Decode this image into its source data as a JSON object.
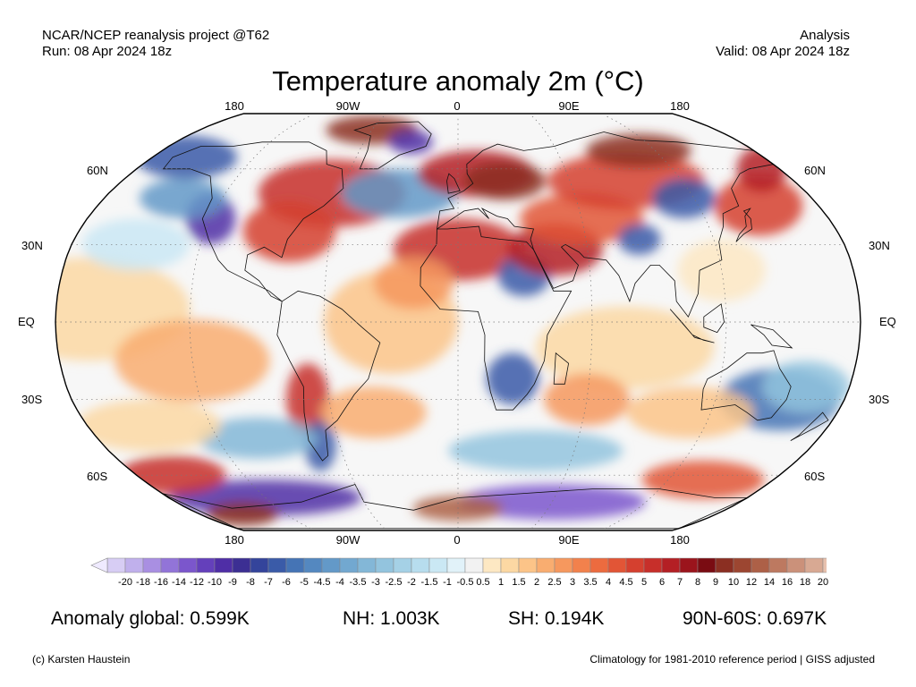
{
  "header": {
    "project": "NCAR/NCEP reanalysis project @T62",
    "run": "Run: 08 Apr 2024 18z",
    "kind": "Analysis",
    "valid": "Valid: 08 Apr 2024 18z"
  },
  "title": "Temperature anomaly 2m (°C)",
  "map": {
    "projection": "robinson",
    "lon_labels": [
      "180",
      "90W",
      "0",
      "90E",
      "180"
    ],
    "lat_labels": [
      "60N",
      "30N",
      "EQ",
      "30S",
      "60S"
    ]
  },
  "colorbar": {
    "labels": [
      "-20",
      "-18",
      "-16",
      "-14",
      "-12",
      "-10",
      "-9",
      "-8",
      "-7",
      "-6",
      "-5",
      "-4.5",
      "-4",
      "-3.5",
      "-3",
      "-2.5",
      "-2",
      "-1.5",
      "-1",
      "-0.5",
      "0.5",
      "1",
      "1.5",
      "2",
      "2.5",
      "3",
      "3.5",
      "4",
      "4.5",
      "5",
      "6",
      "7",
      "8",
      "9",
      "10",
      "12",
      "14",
      "16",
      "18",
      "20"
    ],
    "colors": [
      "#d7cdf4",
      "#c0b0ec",
      "#a98fe2",
      "#9274d8",
      "#7b56cc",
      "#6440bb",
      "#4f2ea6",
      "#3c2f93",
      "#34449b",
      "#3a5ba8",
      "#4574b5",
      "#5488c0",
      "#6399c8",
      "#72a8d0",
      "#83b7d7",
      "#93c4de",
      "#a5d1e6",
      "#b7ddee",
      "#cae8f4",
      "#e1f2f9",
      "#f2f2f2",
      "#fde8c3",
      "#fcd8a3",
      "#fcc488",
      "#f9ad70",
      "#f6985e",
      "#f2814c",
      "#ec6b3f",
      "#e25536",
      "#d5402f",
      "#c72f2a",
      "#b41f24",
      "#9b141c",
      "#7a0c12",
      "#8b2f22",
      "#9c4631",
      "#ad6047",
      "#bd7960",
      "#cb917a",
      "#d8a993",
      "#e7c1ae"
    ]
  },
  "stats": {
    "global": "Anomaly global: 0.599K",
    "nh": "NH: 1.003K",
    "sh": "SH: 0.194K",
    "polar": "90N-60S: 0.697K"
  },
  "footer": {
    "copyright": "(c) Karsten Haustein",
    "climatology": "Climatology for 1981-2010 reference period | GISS adjusted"
  }
}
